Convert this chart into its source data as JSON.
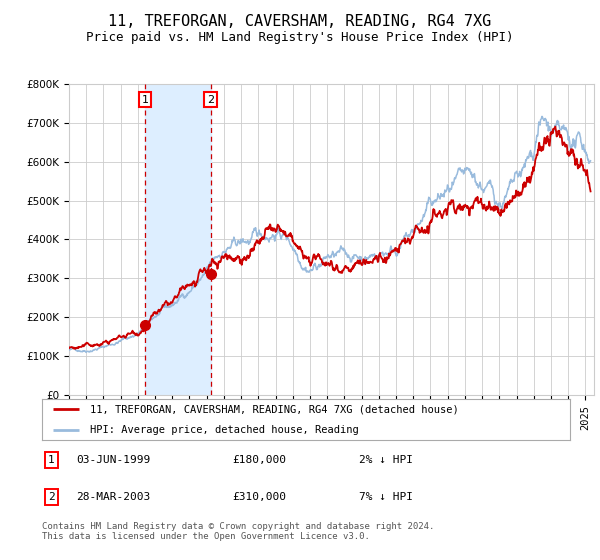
{
  "title": "11, TREFORGAN, CAVERSHAM, READING, RG4 7XG",
  "subtitle": "Price paid vs. HM Land Registry's House Price Index (HPI)",
  "ylim": [
    0,
    800000
  ],
  "xlim_start": 1995.0,
  "xlim_end": 2025.5,
  "sale1_date": 1999.42,
  "sale1_price": 180000,
  "sale2_date": 2003.23,
  "sale2_price": 310000,
  "legend_line1": "11, TREFORGAN, CAVERSHAM, READING, RG4 7XG (detached house)",
  "legend_line2": "HPI: Average price, detached house, Reading",
  "footnote": "Contains HM Land Registry data © Crown copyright and database right 2024.\nThis data is licensed under the Open Government Licence v3.0.",
  "hpi_color": "#99bbdd",
  "price_color": "#cc0000",
  "shade_color": "#ddeeff",
  "background_color": "#ffffff",
  "grid_color": "#cccccc",
  "title_fontsize": 11,
  "subtitle_fontsize": 9,
  "tick_fontsize": 7.5
}
